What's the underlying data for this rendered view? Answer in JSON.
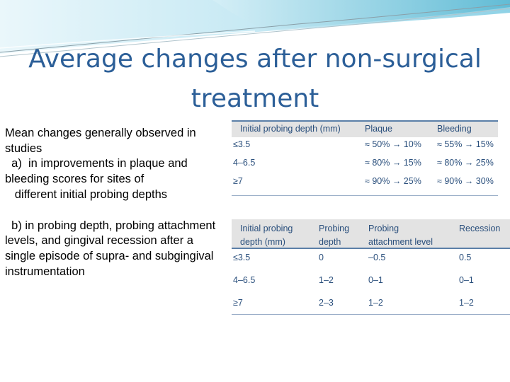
{
  "title": "Average changes after non-surgical treatment",
  "body": {
    "para1": "Mean changes generally observed in studies\n  a)  in improvements in plaque and bleeding scores for sites of\n   different initial probing depths",
    "para2": "  b) in probing depth, probing attachment levels, and gingival recession after a single episode of supra- and subgingival instrumentation"
  },
  "table1": {
    "headers": [
      "Initial probing depth (mm)",
      "Plaque",
      "Bleeding"
    ],
    "rows": [
      [
        "≤3.5",
        "≈ 50% → 10%",
        "≈ 55% → 15%"
      ],
      [
        "4–6.5",
        "≈ 80% → 15%",
        "≈ 80% → 25%"
      ],
      [
        "≥7",
        "≈ 90% → 25%",
        "≈ 90% → 30%"
      ]
    ]
  },
  "table2": {
    "headers": [
      "Initial probing\ndepth (mm)",
      "Probing\ndepth",
      "Probing\nattachment level",
      "Recession"
    ],
    "rows": [
      [
        "≤3.5",
        "0",
        "–0.5",
        "0.5"
      ],
      [
        "4–6.5",
        "1–2",
        "0–1",
        "0–1"
      ],
      [
        "≥7",
        "2–3",
        "1–2",
        "1–2"
      ]
    ]
  },
  "colors": {
    "title": "#2c5f98",
    "table_text": "#2a4f7c",
    "header_bg": "#e3e3e3",
    "wave_light": "#bfe6f2",
    "wave_dark": "#4fb3cf"
  }
}
